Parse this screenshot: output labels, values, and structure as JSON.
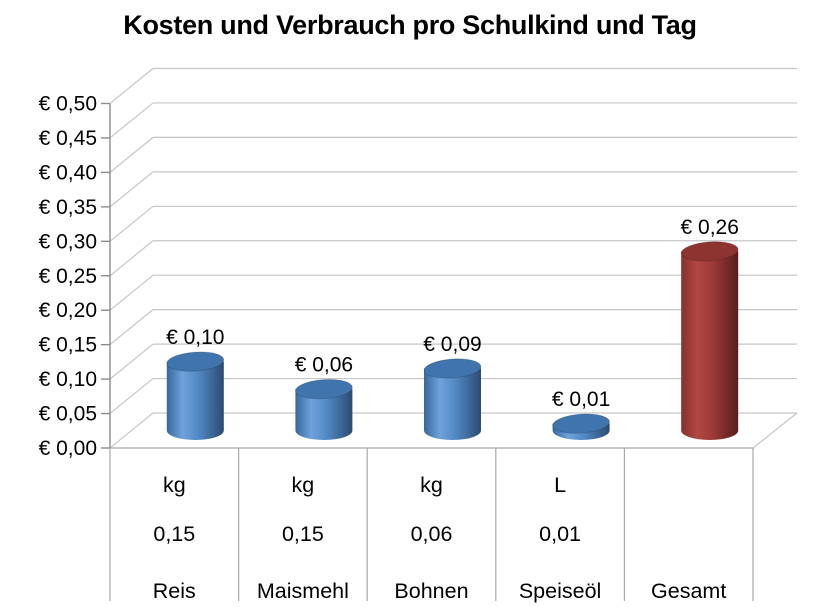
{
  "title": "Kosten und Verbrauch pro Schulkind und Tag",
  "chart_data": {
    "type": "bar",
    "style": "3d-cylinder",
    "title": "Kosten und Verbrauch pro Schulkind und Tag",
    "categories": [
      "Reis",
      "Maismehl",
      "Bohnen",
      "Speiseöl",
      "Gesamt"
    ],
    "units": [
      "kg",
      "kg",
      "kg",
      "L",
      ""
    ],
    "amounts": [
      "0,15",
      "0,15",
      "0,06",
      "0,01",
      ""
    ],
    "values": [
      0.1,
      0.06,
      0.09,
      0.01,
      0.26
    ],
    "value_labels": [
      "€ 0,10",
      "€ 0,06",
      "€ 0,09",
      "€ 0,01",
      "€ 0,26"
    ],
    "series_style": [
      "blue",
      "blue",
      "blue",
      "blue",
      "red"
    ],
    "xlabel": "",
    "ylabel": "",
    "ylim": [
      0,
      0.5
    ],
    "ytick_step": 0.05,
    "ytick_labels": [
      "€ 0,00",
      "€ 0,05",
      "€ 0,10",
      "€ 0,15",
      "€ 0,20",
      "€ 0,25",
      "€ 0,30",
      "€ 0,35",
      "€ 0,40",
      "€ 0,45",
      "€ 0,50"
    ],
    "grid": true,
    "legend": false
  },
  "colors": {
    "grid": "#C6C6C6",
    "axis": "#8C8C8C",
    "table_border": "#A8A8A8",
    "text": "#000000",
    "background": "#FFFFFF",
    "bar_styles": {
      "blue": {
        "body": [
          "#39679B",
          "#6FA2DC",
          "#5189C4",
          "#2B4B71"
        ],
        "top": "#4074AC",
        "main": "#4F81BD"
      },
      "red": {
        "body": [
          "#86302D",
          "#B24743",
          "#9D3B38",
          "#571D1B"
        ],
        "top": "#8D3330",
        "main": "#953735"
      }
    }
  }
}
